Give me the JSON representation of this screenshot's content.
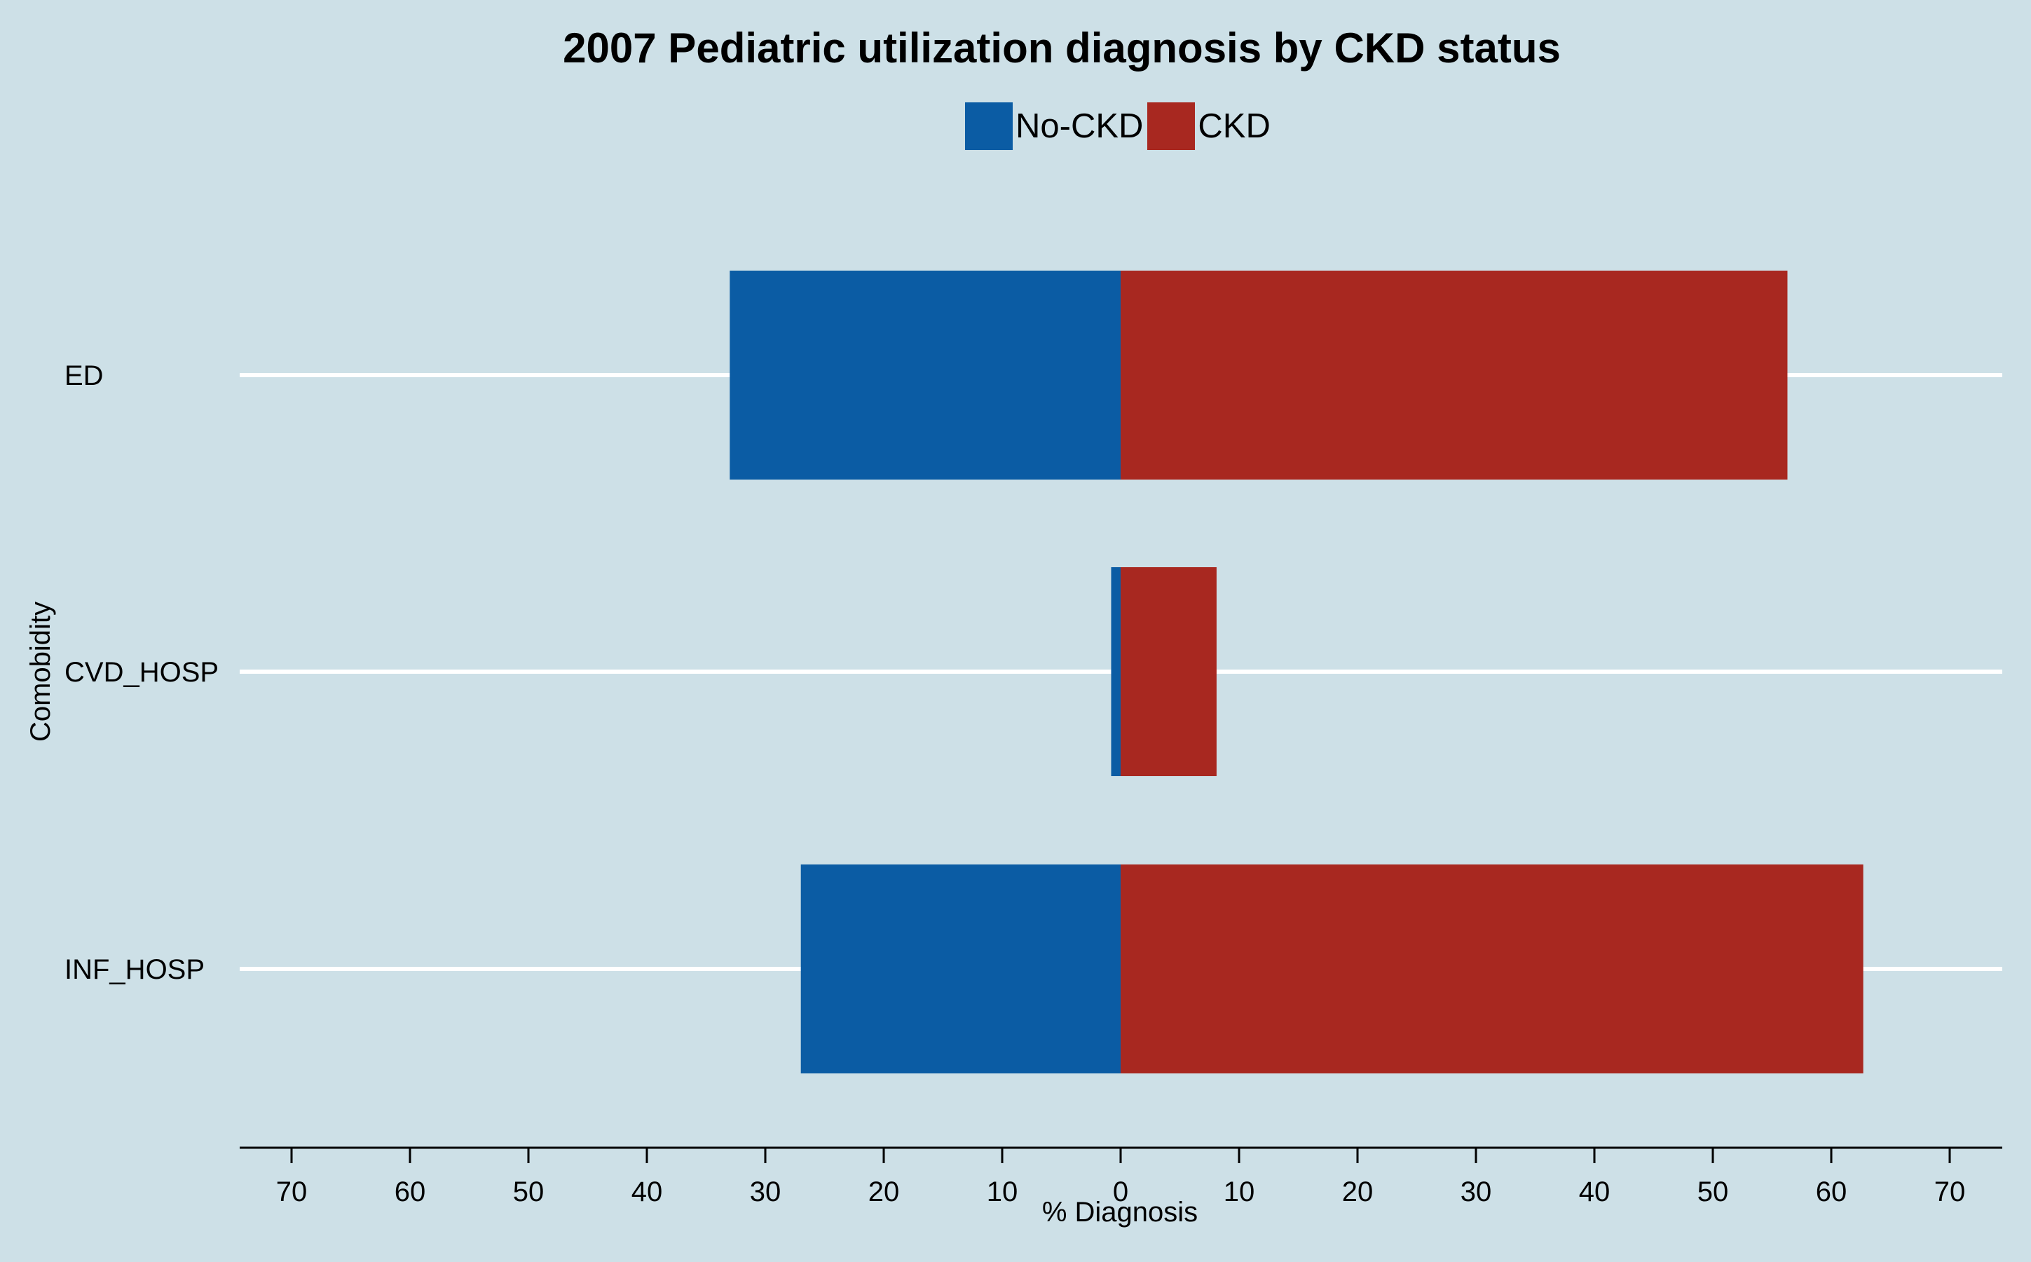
{
  "chart_data": {
    "type": "bar",
    "orientation": "horizontal-diverging",
    "title": "2007 Pediatric utilization diagnosis by CKD status",
    "xlabel": "% Diagnosis",
    "ylabel": "Comobidity",
    "categories": [
      "ED",
      "CVD_HOSP",
      "INF_HOSP"
    ],
    "series": [
      {
        "name": "No-CKD",
        "color": "#0b5ca4",
        "direction": "left",
        "values": [
          33,
          0.8,
          27
        ]
      },
      {
        "name": "CKD",
        "color": "#a82820",
        "direction": "right",
        "values": [
          56.3,
          8.1,
          62.7
        ]
      }
    ],
    "xlim": [
      -75,
      75
    ],
    "xticks": [
      -70,
      -60,
      -50,
      -40,
      -30,
      -20,
      -10,
      0,
      10,
      20,
      30,
      40,
      50,
      60,
      70
    ],
    "xtick_labels": [
      "70",
      "60",
      "50",
      "40",
      "30",
      "20",
      "10",
      "0",
      "10",
      "20",
      "30",
      "40",
      "50",
      "60",
      "70"
    ],
    "legend_position": "top-center",
    "grid": "horizontal lines at categories",
    "background_color": "#cde0e7"
  }
}
